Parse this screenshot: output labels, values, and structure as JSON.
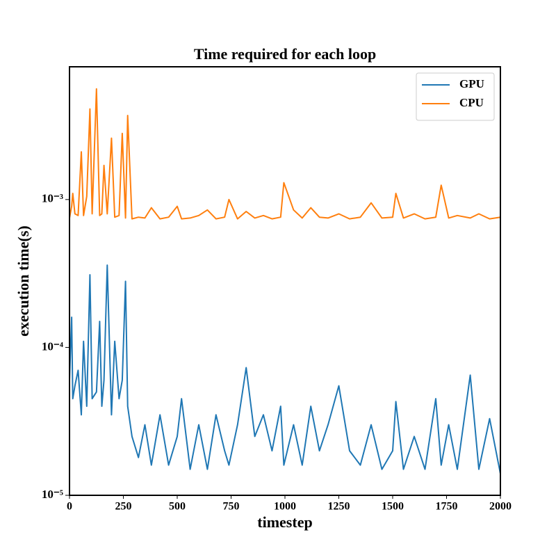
{
  "chart_data": {
    "type": "line",
    "title": "Time required for each loop",
    "xlabel": "timestep",
    "ylabel": "execution time(s)",
    "x": [
      0,
      10,
      15,
      25,
      40,
      55,
      65,
      80,
      95,
      105,
      125,
      140,
      150,
      160,
      175,
      195,
      210,
      230,
      245,
      260,
      270,
      290,
      320,
      350,
      380,
      420,
      460,
      500,
      520,
      560,
      600,
      640,
      680,
      720,
      740,
      780,
      820,
      860,
      900,
      940,
      980,
      995,
      1040,
      1080,
      1120,
      1160,
      1200,
      1250,
      1300,
      1350,
      1400,
      1450,
      1500,
      1515,
      1550,
      1600,
      1650,
      1700,
      1725,
      1760,
      1800,
      1860,
      1900,
      1950,
      2000
    ],
    "series": [
      {
        "name": "GPU",
        "color": "#1f77b4",
        "values": [
          6e-05,
          0.00016,
          4.5e-05,
          5.5e-05,
          7e-05,
          3.5e-05,
          0.00011,
          4e-05,
          0.00031,
          4.5e-05,
          5e-05,
          0.00015,
          4e-05,
          6e-05,
          0.00036,
          3.5e-05,
          0.00011,
          4.5e-05,
          6e-05,
          0.00028,
          4e-05,
          2.5e-05,
          1.8e-05,
          3e-05,
          1.6e-05,
          3.5e-05,
          1.6e-05,
          2.5e-05,
          4.5e-05,
          1.5e-05,
          3e-05,
          1.5e-05,
          3.5e-05,
          2e-05,
          1.6e-05,
          3e-05,
          7.3e-05,
          2.5e-05,
          3.5e-05,
          2e-05,
          4e-05,
          1.6e-05,
          3e-05,
          1.6e-05,
          4e-05,
          2e-05,
          3e-05,
          5.5e-05,
          2e-05,
          1.6e-05,
          3e-05,
          1.5e-05,
          2e-05,
          4.3e-05,
          1.5e-05,
          2.5e-05,
          1.5e-05,
          4.5e-05,
          1.6e-05,
          3e-05,
          1.5e-05,
          6.5e-05,
          1.5e-05,
          3.3e-05,
          1.4e-05
        ]
      },
      {
        "name": "CPU",
        "color": "#ff7f0e",
        "values": [
          0.00075,
          0.0009,
          0.0011,
          0.0008,
          0.00078,
          0.0021,
          0.00078,
          0.00105,
          0.0041,
          0.0008,
          0.0056,
          0.00078,
          0.0008,
          0.0017,
          0.0008,
          0.0026,
          0.00076,
          0.00078,
          0.0028,
          0.00075,
          0.0037,
          0.00074,
          0.00076,
          0.00075,
          0.00088,
          0.00074,
          0.00076,
          0.0009,
          0.00074,
          0.00075,
          0.00078,
          0.00085,
          0.00074,
          0.00076,
          0.001,
          0.00074,
          0.00083,
          0.00075,
          0.00078,
          0.00074,
          0.00076,
          0.0013,
          0.00085,
          0.00075,
          0.00088,
          0.00076,
          0.00075,
          0.0008,
          0.00074,
          0.00076,
          0.00095,
          0.00075,
          0.00076,
          0.0011,
          0.00075,
          0.0008,
          0.00074,
          0.00076,
          0.00125,
          0.00075,
          0.00078,
          0.00075,
          0.0008,
          0.00074,
          0.00076
        ]
      }
    ],
    "xlim": [
      0,
      2000
    ],
    "xticks": [
      0,
      250,
      500,
      750,
      1000,
      1250,
      1500,
      1750,
      2000
    ],
    "ylim": [
      1e-05,
      0.0079
    ],
    "log_y": true,
    "yticks": [
      {
        "value": 1e-05,
        "label": "10⁻⁵"
      },
      {
        "value": 0.0001,
        "label": "10⁻⁴"
      },
      {
        "value": 0.001,
        "label": "10⁻³"
      }
    ],
    "legend": "upper right"
  }
}
